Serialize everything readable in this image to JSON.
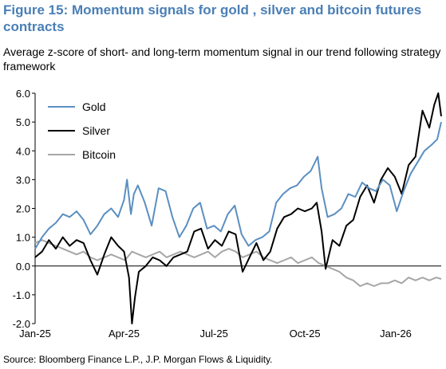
{
  "title": "Figure 15: Momentum signals for gold , silver and bitcoin futures contracts",
  "subtitle": "Average z-score of short- and long-term momentum signal in our trend following strategy framework",
  "source": "Source: Bloomberg Finance L.P., J.P. Morgan Flows & Liquidity.",
  "chart_data": {
    "type": "line",
    "title": "",
    "xlabel": "",
    "ylabel": "",
    "x_start": "2025-01-01",
    "x_end": "2026-02-16",
    "x_tick_labels": [
      {
        "date": "2025-01-01",
        "label": "Jan-25"
      },
      {
        "date": "2025-04-01",
        "label": "Apr-25"
      },
      {
        "date": "2025-07-01",
        "label": "Jul-25"
      },
      {
        "date": "2025-10-01",
        "label": "Oct-25"
      },
      {
        "date": "2026-01-01",
        "label": "Jan-26"
      }
    ],
    "ylim": [
      -2.0,
      6.0
    ],
    "y_ticks": [
      6.0,
      5.0,
      4.0,
      3.0,
      2.0,
      1.0,
      0.0,
      -1.0,
      -2.0
    ],
    "y_tick_labels": [
      "6.0",
      "5.0",
      "4.0",
      "3.0",
      "2.0",
      "1.0",
      "0.0",
      "-1.0",
      "-2.0"
    ],
    "grid": false,
    "legend_position": "top-left",
    "series": [
      {
        "name": "Gold",
        "color": "#5b8fc1",
        "points": [
          [
            "2025-01-01",
            0.6
          ],
          [
            "2025-01-08",
            1.0
          ],
          [
            "2025-01-15",
            1.3
          ],
          [
            "2025-01-22",
            1.5
          ],
          [
            "2025-01-29",
            1.8
          ],
          [
            "2025-02-05",
            1.7
          ],
          [
            "2025-02-12",
            1.9
          ],
          [
            "2025-02-19",
            1.6
          ],
          [
            "2025-02-26",
            1.1
          ],
          [
            "2025-03-05",
            1.4
          ],
          [
            "2025-03-12",
            1.8
          ],
          [
            "2025-03-19",
            2.0
          ],
          [
            "2025-03-26",
            1.7
          ],
          [
            "2025-04-01",
            2.3
          ],
          [
            "2025-04-04",
            3.0
          ],
          [
            "2025-04-08",
            1.8
          ],
          [
            "2025-04-11",
            2.5
          ],
          [
            "2025-04-15",
            2.8
          ],
          [
            "2025-04-22",
            2.2
          ],
          [
            "2025-04-29",
            1.4
          ],
          [
            "2025-05-06",
            2.7
          ],
          [
            "2025-05-13",
            2.6
          ],
          [
            "2025-05-20",
            1.7
          ],
          [
            "2025-05-27",
            1.0
          ],
          [
            "2025-06-03",
            1.4
          ],
          [
            "2025-06-10",
            2.0
          ],
          [
            "2025-06-17",
            2.2
          ],
          [
            "2025-06-24",
            1.3
          ],
          [
            "2025-07-01",
            1.4
          ],
          [
            "2025-07-08",
            1.2
          ],
          [
            "2025-07-15",
            1.8
          ],
          [
            "2025-07-22",
            2.1
          ],
          [
            "2025-07-29",
            1.1
          ],
          [
            "2025-08-05",
            0.7
          ],
          [
            "2025-08-12",
            0.9
          ],
          [
            "2025-08-19",
            1.0
          ],
          [
            "2025-08-26",
            1.2
          ],
          [
            "2025-09-02",
            2.2
          ],
          [
            "2025-09-09",
            2.5
          ],
          [
            "2025-09-16",
            2.7
          ],
          [
            "2025-09-23",
            2.8
          ],
          [
            "2025-09-30",
            3.1
          ],
          [
            "2025-10-07",
            3.3
          ],
          [
            "2025-10-14",
            3.8
          ],
          [
            "2025-10-18",
            2.7
          ],
          [
            "2025-10-24",
            1.7
          ],
          [
            "2025-10-31",
            1.8
          ],
          [
            "2025-11-07",
            2.0
          ],
          [
            "2025-11-14",
            2.5
          ],
          [
            "2025-11-21",
            2.4
          ],
          [
            "2025-11-28",
            2.9
          ],
          [
            "2025-12-05",
            2.7
          ],
          [
            "2025-12-12",
            2.6
          ],
          [
            "2025-12-19",
            3.0
          ],
          [
            "2025-12-26",
            2.8
          ],
          [
            "2026-01-02",
            1.9
          ],
          [
            "2026-01-09",
            2.6
          ],
          [
            "2026-01-16",
            3.2
          ],
          [
            "2026-01-23",
            3.6
          ],
          [
            "2026-01-30",
            4.0
          ],
          [
            "2026-02-06",
            4.2
          ],
          [
            "2026-02-12",
            4.4
          ],
          [
            "2026-02-16",
            5.0
          ]
        ]
      },
      {
        "name": "Silver",
        "color": "#000000",
        "points": [
          [
            "2025-01-01",
            0.3
          ],
          [
            "2025-01-08",
            0.5
          ],
          [
            "2025-01-15",
            0.9
          ],
          [
            "2025-01-22",
            0.6
          ],
          [
            "2025-01-29",
            1.0
          ],
          [
            "2025-02-05",
            0.7
          ],
          [
            "2025-02-12",
            0.9
          ],
          [
            "2025-02-19",
            0.8
          ],
          [
            "2025-02-26",
            0.2
          ],
          [
            "2025-03-05",
            -0.3
          ],
          [
            "2025-03-12",
            0.4
          ],
          [
            "2025-03-19",
            1.0
          ],
          [
            "2025-03-26",
            0.7
          ],
          [
            "2025-04-01",
            0.5
          ],
          [
            "2025-04-06",
            -0.4
          ],
          [
            "2025-04-09",
            -2.0
          ],
          [
            "2025-04-12",
            -1.1
          ],
          [
            "2025-04-16",
            -0.2
          ],
          [
            "2025-04-23",
            0.0
          ],
          [
            "2025-04-30",
            0.3
          ],
          [
            "2025-05-07",
            0.2
          ],
          [
            "2025-05-14",
            0.0
          ],
          [
            "2025-05-21",
            0.3
          ],
          [
            "2025-05-28",
            0.4
          ],
          [
            "2025-06-04",
            0.5
          ],
          [
            "2025-06-11",
            1.2
          ],
          [
            "2025-06-18",
            1.3
          ],
          [
            "2025-06-25",
            0.6
          ],
          [
            "2025-07-02",
            0.9
          ],
          [
            "2025-07-09",
            0.7
          ],
          [
            "2025-07-16",
            1.2
          ],
          [
            "2025-07-23",
            1.1
          ],
          [
            "2025-07-30",
            -0.2
          ],
          [
            "2025-08-06",
            0.3
          ],
          [
            "2025-08-13",
            0.8
          ],
          [
            "2025-08-20",
            0.2
          ],
          [
            "2025-08-27",
            0.5
          ],
          [
            "2025-09-03",
            1.3
          ],
          [
            "2025-09-10",
            1.7
          ],
          [
            "2025-09-17",
            1.8
          ],
          [
            "2025-09-24",
            2.0
          ],
          [
            "2025-10-01",
            1.9
          ],
          [
            "2025-10-08",
            2.0
          ],
          [
            "2025-10-13",
            2.2
          ],
          [
            "2025-10-18",
            1.2
          ],
          [
            "2025-10-22",
            -0.1
          ],
          [
            "2025-10-29",
            0.9
          ],
          [
            "2025-11-05",
            0.7
          ],
          [
            "2025-11-12",
            1.4
          ],
          [
            "2025-11-19",
            1.6
          ],
          [
            "2025-11-26",
            2.4
          ],
          [
            "2025-12-03",
            2.8
          ],
          [
            "2025-12-10",
            2.2
          ],
          [
            "2025-12-17",
            3.0
          ],
          [
            "2025-12-24",
            3.4
          ],
          [
            "2025-12-31",
            3.1
          ],
          [
            "2026-01-07",
            2.5
          ],
          [
            "2026-01-14",
            3.5
          ],
          [
            "2026-01-21",
            3.8
          ],
          [
            "2026-01-28",
            5.4
          ],
          [
            "2026-02-04",
            4.8
          ],
          [
            "2026-02-09",
            5.6
          ],
          [
            "2026-02-13",
            6.0
          ],
          [
            "2026-02-16",
            5.2
          ]
        ]
      },
      {
        "name": "Bitcoin",
        "color": "#a6a6a6",
        "points": [
          [
            "2025-01-01",
            0.8
          ],
          [
            "2025-01-08",
            0.9
          ],
          [
            "2025-01-15",
            0.8
          ],
          [
            "2025-01-22",
            0.7
          ],
          [
            "2025-01-29",
            0.6
          ],
          [
            "2025-02-05",
            0.5
          ],
          [
            "2025-02-12",
            0.4
          ],
          [
            "2025-02-19",
            0.5
          ],
          [
            "2025-02-26",
            0.3
          ],
          [
            "2025-03-05",
            0.2
          ],
          [
            "2025-03-12",
            0.3
          ],
          [
            "2025-03-19",
            0.4
          ],
          [
            "2025-03-26",
            0.3
          ],
          [
            "2025-04-02",
            0.2
          ],
          [
            "2025-04-09",
            0.5
          ],
          [
            "2025-04-16",
            0.4
          ],
          [
            "2025-04-23",
            0.3
          ],
          [
            "2025-04-30",
            0.4
          ],
          [
            "2025-05-07",
            0.5
          ],
          [
            "2025-05-14",
            0.3
          ],
          [
            "2025-05-21",
            0.4
          ],
          [
            "2025-05-28",
            0.5
          ],
          [
            "2025-06-04",
            0.4
          ],
          [
            "2025-06-11",
            0.3
          ],
          [
            "2025-06-18",
            0.4
          ],
          [
            "2025-06-25",
            0.5
          ],
          [
            "2025-07-02",
            0.3
          ],
          [
            "2025-07-09",
            0.5
          ],
          [
            "2025-07-16",
            0.6
          ],
          [
            "2025-07-23",
            0.5
          ],
          [
            "2025-07-30",
            0.3
          ],
          [
            "2025-08-06",
            0.4
          ],
          [
            "2025-08-13",
            0.5
          ],
          [
            "2025-08-20",
            0.3
          ],
          [
            "2025-08-27",
            0.2
          ],
          [
            "2025-09-03",
            0.1
          ],
          [
            "2025-09-10",
            0.2
          ],
          [
            "2025-09-17",
            0.3
          ],
          [
            "2025-09-24",
            0.1
          ],
          [
            "2025-10-01",
            0.2
          ],
          [
            "2025-10-08",
            0.3
          ],
          [
            "2025-10-15",
            0.1
          ],
          [
            "2025-10-22",
            0.0
          ],
          [
            "2025-10-29",
            -0.1
          ],
          [
            "2025-11-05",
            -0.2
          ],
          [
            "2025-11-12",
            -0.4
          ],
          [
            "2025-11-19",
            -0.5
          ],
          [
            "2025-11-26",
            -0.7
          ],
          [
            "2025-12-03",
            -0.6
          ],
          [
            "2025-12-10",
            -0.7
          ],
          [
            "2025-12-17",
            -0.6
          ],
          [
            "2025-12-24",
            -0.6
          ],
          [
            "2025-12-31",
            -0.5
          ],
          [
            "2026-01-07",
            -0.6
          ],
          [
            "2026-01-14",
            -0.4
          ],
          [
            "2026-01-21",
            -0.5
          ],
          [
            "2026-01-28",
            -0.4
          ],
          [
            "2026-02-04",
            -0.5
          ],
          [
            "2026-02-11",
            -0.4
          ],
          [
            "2026-02-16",
            -0.45
          ]
        ]
      }
    ]
  }
}
